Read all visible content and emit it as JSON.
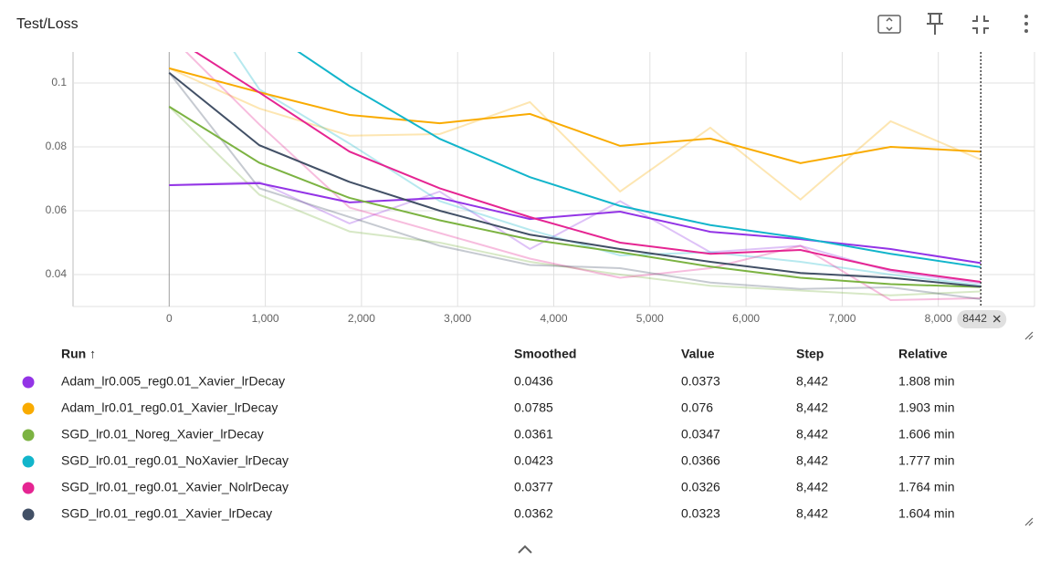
{
  "header": {
    "title": "Test/Loss"
  },
  "chart_data": {
    "type": "line",
    "x": [
      0,
      938,
      1876,
      2814,
      3752,
      4690,
      5628,
      6566,
      7504,
      8442
    ],
    "xlim": [
      -1000,
      9000
    ],
    "xticks": [
      0,
      {
        "value": 1000,
        "label": "1,000"
      },
      {
        "value": 2000,
        "label": "2,000"
      },
      {
        "value": 3000,
        "label": "3,000"
      },
      {
        "value": 4000,
        "label": "4,000"
      },
      {
        "value": 5000,
        "label": "5,000"
      },
      {
        "value": 6000,
        "label": "6,000"
      },
      {
        "value": 7000,
        "label": "7,000"
      },
      {
        "value": 8000,
        "label": "8,000"
      }
    ],
    "ylim": [
      0.03,
      0.1097
    ],
    "yticks": [
      0.04,
      0.06,
      0.08,
      0.1
    ],
    "grid": true,
    "series": [
      {
        "name": "Adam_lr0.005_reg0.01_Xavier_lrDecay",
        "color": "#9334e6",
        "values": [
          0.068,
          0.0686,
          0.0626,
          0.064,
          0.0574,
          0.0597,
          0.0534,
          0.0511,
          0.048,
          0.0436
        ],
        "raw": [
          0.068,
          0.069,
          0.056,
          0.066,
          0.048,
          0.063,
          0.047,
          0.049,
          0.041,
          0.0373
        ]
      },
      {
        "name": "Adam_lr0.01_reg0.01_Xavier_lrDecay",
        "color": "#f9ab00",
        "values": [
          0.1046,
          0.0971,
          0.09,
          0.0874,
          0.0903,
          0.0803,
          0.0826,
          0.0749,
          0.08,
          0.0785
        ],
        "raw": [
          0.1046,
          0.092,
          0.0835,
          0.084,
          0.094,
          0.066,
          0.086,
          0.0635,
          0.088,
          0.076
        ]
      },
      {
        "name": "SGD_lr0.01_Noreg_Xavier_lrDecay",
        "color": "#7cb342",
        "values": [
          0.0926,
          0.075,
          0.064,
          0.057,
          0.051,
          0.047,
          0.0425,
          0.039,
          0.037,
          0.0361
        ],
        "raw": [
          0.0926,
          0.065,
          0.0535,
          0.05,
          0.044,
          0.04,
          0.0365,
          0.035,
          0.0335,
          0.0347
        ]
      },
      {
        "name": "SGD_lr0.01_reg0.01_NoXavier_lrDecay",
        "color": "#12b5cb",
        "values": [
          0.14,
          0.118,
          0.099,
          0.0825,
          0.0705,
          0.0615,
          0.0555,
          0.0515,
          0.0465,
          0.0423
        ],
        "raw": [
          0.14,
          0.098,
          0.081,
          0.063,
          0.054,
          0.046,
          0.047,
          0.044,
          0.04,
          0.0366
        ]
      },
      {
        "name": "SGD_lr0.01_reg0.01_Xavier_NolrDecay",
        "color": "#e52592",
        "values": [
          0.115,
          0.097,
          0.0785,
          0.067,
          0.058,
          0.05,
          0.0465,
          0.0477,
          0.0415,
          0.0377
        ],
        "raw": [
          0.115,
          0.087,
          0.061,
          0.053,
          0.045,
          0.039,
          0.042,
          0.049,
          0.032,
          0.0326
        ]
      },
      {
        "name": "SGD_lr0.01_reg0.01_Xavier_lrDecay",
        "color": "#425066",
        "values": [
          0.1032,
          0.0805,
          0.069,
          0.06,
          0.0525,
          0.048,
          0.044,
          0.0405,
          0.039,
          0.0362
        ],
        "raw": [
          0.1032,
          0.067,
          0.058,
          0.049,
          0.043,
          0.042,
          0.0375,
          0.0355,
          0.036,
          0.0323
        ]
      }
    ]
  },
  "table": {
    "columns": [
      "Run ↑",
      "Smoothed",
      "Value",
      "Step",
      "Relative"
    ],
    "rows": [
      {
        "step": "8,442",
        "relative": "1.808 min"
      },
      {
        "step": "8,442",
        "relative": "1.903 min"
      },
      {
        "step": "8,442",
        "relative": "1.606 min"
      },
      {
        "step": "8,442",
        "relative": "1.777 min"
      },
      {
        "step": "8,442",
        "relative": "1.764 min"
      },
      {
        "step": "8,442",
        "relative": "1.604 min"
      }
    ]
  }
}
